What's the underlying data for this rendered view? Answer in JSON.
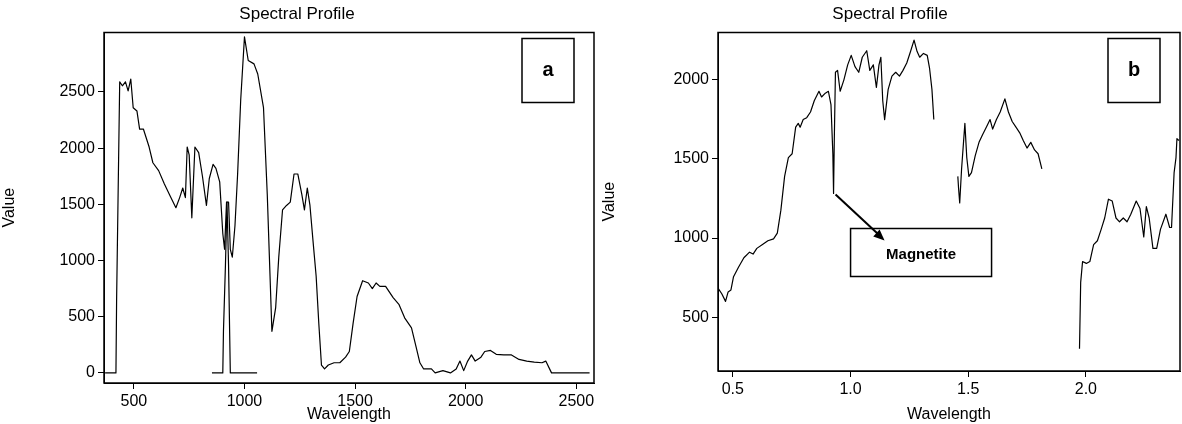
{
  "chart_data": [
    {
      "type": "line",
      "title": "Spectral Profile",
      "xlabel": "Wavelength",
      "ylabel": "Value",
      "xlim": [
        365,
        2580
      ],
      "ylim": [
        -90,
        3030
      ],
      "xticks": [
        500,
        1000,
        1500,
        2000,
        2500
      ],
      "yticks": [
        0,
        500,
        1000,
        1500,
        2000,
        2500
      ],
      "grid": false,
      "marker": "none",
      "annotations": [
        "a"
      ],
      "series": [
        {
          "color": "#000000",
          "x": [
            370,
            419,
            422,
            431,
            436,
            448,
            462,
            474,
            486,
            497,
            514,
            526,
            543,
            569,
            586,
            612,
            638,
            664,
            690,
            707,
            721,
            733,
            741,
            750,
            762,
            776,
            793,
            810,
            828,
            841,
            858,
            871,
            888,
            902,
            910,
            919,
            928,
            936,
            945,
            957,
            969,
            983,
            1000,
            1017,
            1043,
            1060,
            1086,
            1103,
            1124,
            1141,
            1155,
            1172,
            1190,
            1207,
            1224,
            1241,
            1259,
            1271,
            1284,
            1296,
            1310,
            1324,
            1336,
            1348,
            1362,
            1379,
            1405,
            1431,
            1457,
            1474,
            1491,
            1509,
            1534,
            1560,
            1578,
            1595,
            1612,
            1638,
            1672,
            1698,
            1724,
            1755,
            1776,
            1793,
            1810,
            1845,
            1862,
            1897,
            1931,
            1957,
            1974,
            1991,
            2009,
            2026,
            2043,
            2069,
            2086,
            2112,
            2138,
            2172,
            2207,
            2241,
            2276,
            2310,
            2345,
            2362,
            2388,
            2560
          ],
          "values": [
            0,
            0,
            650,
            1900,
            2590,
            2555,
            2590,
            2510,
            2615,
            2360,
            2330,
            2170,
            2170,
            2010,
            1870,
            1800,
            1680,
            1575,
            1470,
            1560,
            1645,
            1560,
            2010,
            1940,
            1380,
            2010,
            1960,
            1750,
            1490,
            1730,
            1855,
            1820,
            1700,
            1240,
            1100,
            1520,
            1520,
            1100,
            1030,
            1310,
            1770,
            2430,
            2990,
            2780,
            2750,
            2660,
            2360,
            1590,
            370,
            580,
            1030,
            1450,
            1490,
            1520,
            1770,
            1770,
            1590,
            1450,
            1645,
            1490,
            1170,
            860,
            440,
            70,
            35,
            70,
            90,
            90,
            140,
            190,
            440,
            680,
            820,
            800,
            750,
            800,
            770,
            770,
            670,
            610,
            490,
            400,
            230,
            90,
            35,
            35,
            0,
            20,
            0,
            35,
            105,
            20,
            105,
            160,
            105,
            140,
            190,
            200,
            165,
            160,
            160,
            120,
            105,
            95,
            90,
            105,
            0,
            0
          ]
        },
        {
          "color": "#000000",
          "x": [
            853,
            902,
            905,
            914,
            921,
            928,
            936,
            1057
          ],
          "values": [
            0,
            0,
            370,
            960,
            1520,
            960,
            0,
            0
          ]
        }
      ]
    },
    {
      "type": "line",
      "title": "Spectral Profile",
      "xlabel": "Wavelength",
      "ylabel": "Value",
      "xlim": [
        0.437,
        2.4
      ],
      "ylim": [
        160,
        2300
      ],
      "xticks": [
        0.5,
        {
          "value": 1,
          "label": "1.0"
        },
        1.5,
        {
          "value": 2,
          "label": "2.0"
        }
      ],
      "yticks": [
        500,
        1000,
        1500,
        2000
      ],
      "grid": false,
      "marker": "none",
      "annotations": [
        "b",
        {
          "text": "Magnetite",
          "x": 0.928,
          "y": 1282
        }
      ],
      "series": [
        {
          "color": "#000000",
          "x": [
            0.437,
            0.453,
            0.469,
            0.48,
            0.492,
            0.503,
            0.524,
            0.547,
            0.571,
            0.586,
            0.602,
            0.626,
            0.649,
            0.673,
            0.689,
            0.704,
            0.72,
            0.736,
            0.752,
            0.767,
            0.778,
            0.786,
            0.799,
            0.814,
            0.83,
            0.846,
            0.866,
            0.877,
            0.893,
            0.906,
            0.917,
            0.925,
            0.928,
            0.931,
            0.936,
            0.945,
            0.956,
            0.972,
            0.988,
            1.003,
            1.019,
            1.035,
            1.05,
            1.069,
            1.082,
            1.097,
            1.11,
            1.121,
            1.129,
            1.137,
            1.145,
            1.16,
            1.176,
            1.192,
            1.208,
            1.223,
            1.239,
            1.255,
            1.27,
            1.283,
            1.294,
            1.31,
            1.326,
            1.336,
            1.346,
            1.354
          ],
          "values": [
            684,
            648,
            600,
            660,
            672,
            756,
            816,
            876,
            911,
            899,
            935,
            959,
            983,
            995,
            1031,
            1175,
            1390,
            1509,
            1533,
            1701,
            1725,
            1701,
            1749,
            1761,
            1797,
            1868,
            1928,
            1892,
            1916,
            1928,
            1844,
            1533,
            1282,
            1605,
            2048,
            2060,
            1928,
            2000,
            2095,
            2155,
            2084,
            2048,
            2143,
            2184,
            2060,
            2095,
            1952,
            2095,
            2143,
            1868,
            1749,
            1940,
            2024,
            2048,
            2024,
            2060,
            2107,
            2179,
            2251,
            2179,
            2143,
            2167,
            2155,
            2072,
            1940,
            1749
          ]
        },
        {
          "color": "#000000",
          "x": [
            1.456,
            1.459,
            1.464,
            1.472,
            1.486,
            1.494,
            1.503,
            1.514,
            1.53,
            1.546,
            1.561,
            1.577,
            1.593,
            1.604,
            1.62,
            1.636,
            1.656,
            1.671,
            1.687,
            1.703,
            1.719,
            1.734,
            1.75,
            1.766,
            1.782,
            1.797,
            1.813
          ],
          "values": [
            1390,
            1318,
            1222,
            1438,
            1725,
            1509,
            1390,
            1414,
            1521,
            1605,
            1653,
            1701,
            1749,
            1689,
            1749,
            1797,
            1880,
            1797,
            1737,
            1701,
            1665,
            1617,
            1569,
            1605,
            1557,
            1533,
            1438
          ]
        },
        {
          "color": "#000000",
          "x": [
            1.973,
            1.978,
            1.986,
            2.002,
            2.017,
            2.033,
            2.049,
            2.065,
            2.08,
            2.096,
            2.112,
            2.128,
            2.143,
            2.159,
            2.175,
            2.191,
            2.214,
            2.23,
            2.246,
            2.257,
            2.269,
            2.285,
            2.301,
            2.317,
            2.34,
            2.356,
            2.364,
            2.375,
            2.383,
            2.387,
            2.395
          ],
          "values": [
            301,
            720,
            852,
            840,
            852,
            959,
            983,
            1055,
            1127,
            1246,
            1234,
            1127,
            1103,
            1127,
            1103,
            1151,
            1234,
            1187,
            1007,
            1199,
            1127,
            935,
            935,
            1055,
            1151,
            1067,
            1067,
            1414,
            1509,
            1629,
            1617
          ]
        }
      ]
    }
  ]
}
